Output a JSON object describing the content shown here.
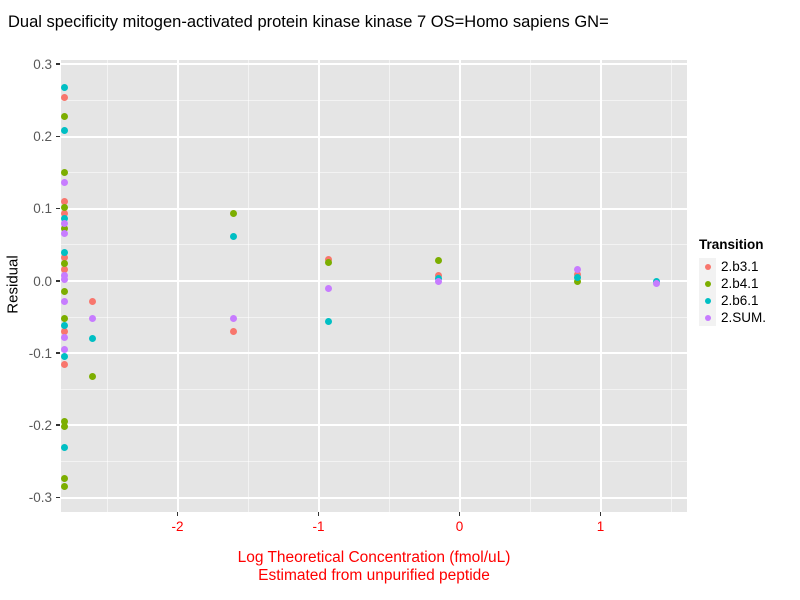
{
  "title": "Dual specificity mitogen-activated protein kinase kinase 7 OS=Homo sapiens GN=",
  "axes": {
    "y_title": "Residual",
    "x_title_line1": "Log Theoretical Concentration (fmol/uL)",
    "x_title_line2": "Estimated from unpurified peptide",
    "x_tick_labels": [
      "-2",
      "-1",
      "0",
      "1"
    ],
    "y_tick_labels": [
      "0.3",
      "0.2",
      "0.1",
      "0.0",
      "-0.1",
      "-0.2",
      "-0.3"
    ]
  },
  "legend": {
    "title": "Transition",
    "items": [
      {
        "label": "2.b3.1",
        "color": "#F8766D"
      },
      {
        "label": "2.b4.1",
        "color": "#7CAE00"
      },
      {
        "label": "2.b6.1",
        "color": "#00BFC4"
      },
      {
        "label": "2.SUM.",
        "color": "#C77CFF"
      }
    ]
  },
  "colors": {
    "panel_background": "#E5E5E5",
    "gridline": "#FFFFFF",
    "x_axis_text": "#FF0000",
    "y_axis_text": "#595959",
    "title_text": "#000000"
  },
  "chart_data": {
    "type": "scatter",
    "title": "Dual specificity mitogen-activated protein kinase kinase 7 OS=Homo sapiens GN=",
    "xlabel": "Log Theoretical Concentration (fmol/uL) — Estimated from unpurified peptide",
    "ylabel": "Residual",
    "xlim": [
      -2.83,
      1.61
    ],
    "ylim": [
      -0.32,
      0.31
    ],
    "x_ticks": [
      -2,
      -1,
      0,
      1
    ],
    "y_ticks": [
      0.3,
      0.2,
      0.1,
      0.0,
      -0.1,
      -0.2,
      -0.3
    ],
    "x_minor_ticks": [
      -2.5,
      -1.5,
      -0.5,
      0.5,
      1.5
    ],
    "y_minor_ticks": [
      0.25,
      0.15,
      0.05,
      -0.05,
      -0.15,
      -0.25
    ],
    "grid": true,
    "legend_position": "right",
    "series": [
      {
        "name": "2.b3.1",
        "color": "#F8766D",
        "points": [
          [
            -2.8,
            0.254
          ],
          [
            -2.8,
            0.11
          ],
          [
            -2.8,
            0.094
          ],
          [
            -2.8,
            0.032
          ],
          [
            -2.8,
            0.016
          ],
          [
            -2.8,
            -0.07
          ],
          [
            -2.8,
            -0.116
          ],
          [
            -2.6,
            -0.028
          ],
          [
            -1.6,
            -0.07
          ],
          [
            -0.93,
            0.03
          ],
          [
            -0.15,
            0.008
          ],
          [
            0.84,
            0.009
          ]
        ]
      },
      {
        "name": "2.b4.1",
        "color": "#7CAE00",
        "points": [
          [
            -2.8,
            0.228
          ],
          [
            -2.8,
            0.15
          ],
          [
            -2.8,
            0.102
          ],
          [
            -2.8,
            0.073
          ],
          [
            -2.8,
            0.024
          ],
          [
            -2.8,
            -0.014
          ],
          [
            -2.8,
            -0.052
          ],
          [
            -2.8,
            -0.195
          ],
          [
            -2.8,
            -0.202
          ],
          [
            -2.8,
            -0.274
          ],
          [
            -2.8,
            -0.285
          ],
          [
            -2.6,
            -0.132
          ],
          [
            -1.6,
            0.094
          ],
          [
            -0.93,
            0.026
          ],
          [
            -0.15,
            0.028
          ],
          [
            0.84,
            0.0
          ]
        ]
      },
      {
        "name": "2.b6.1",
        "color": "#00BFC4",
        "points": [
          [
            -2.8,
            0.268
          ],
          [
            -2.8,
            0.208
          ],
          [
            -2.8,
            0.087
          ],
          [
            -2.8,
            0.04
          ],
          [
            -2.8,
            -0.062
          ],
          [
            -2.8,
            -0.104
          ],
          [
            -2.8,
            -0.23
          ],
          [
            -2.6,
            -0.08
          ],
          [
            -1.6,
            0.062
          ],
          [
            -0.93,
            -0.056
          ],
          [
            -0.15,
            0.004
          ],
          [
            0.84,
            0.005
          ],
          [
            1.4,
            0.0
          ]
        ]
      },
      {
        "name": "2.SUM.",
        "color": "#C77CFF",
        "points": [
          [
            -2.8,
            0.136
          ],
          [
            -2.8,
            0.08
          ],
          [
            -2.8,
            0.066
          ],
          [
            -2.8,
            0.008
          ],
          [
            -2.8,
            0.002
          ],
          [
            -2.8,
            -0.028
          ],
          [
            -2.8,
            -0.078
          ],
          [
            -2.8,
            -0.095
          ],
          [
            -2.6,
            -0.052
          ],
          [
            -1.6,
            -0.052
          ],
          [
            -0.93,
            -0.011
          ],
          [
            -0.15,
            0.0
          ],
          [
            0.84,
            0.016
          ],
          [
            1.4,
            -0.003
          ]
        ]
      }
    ]
  }
}
